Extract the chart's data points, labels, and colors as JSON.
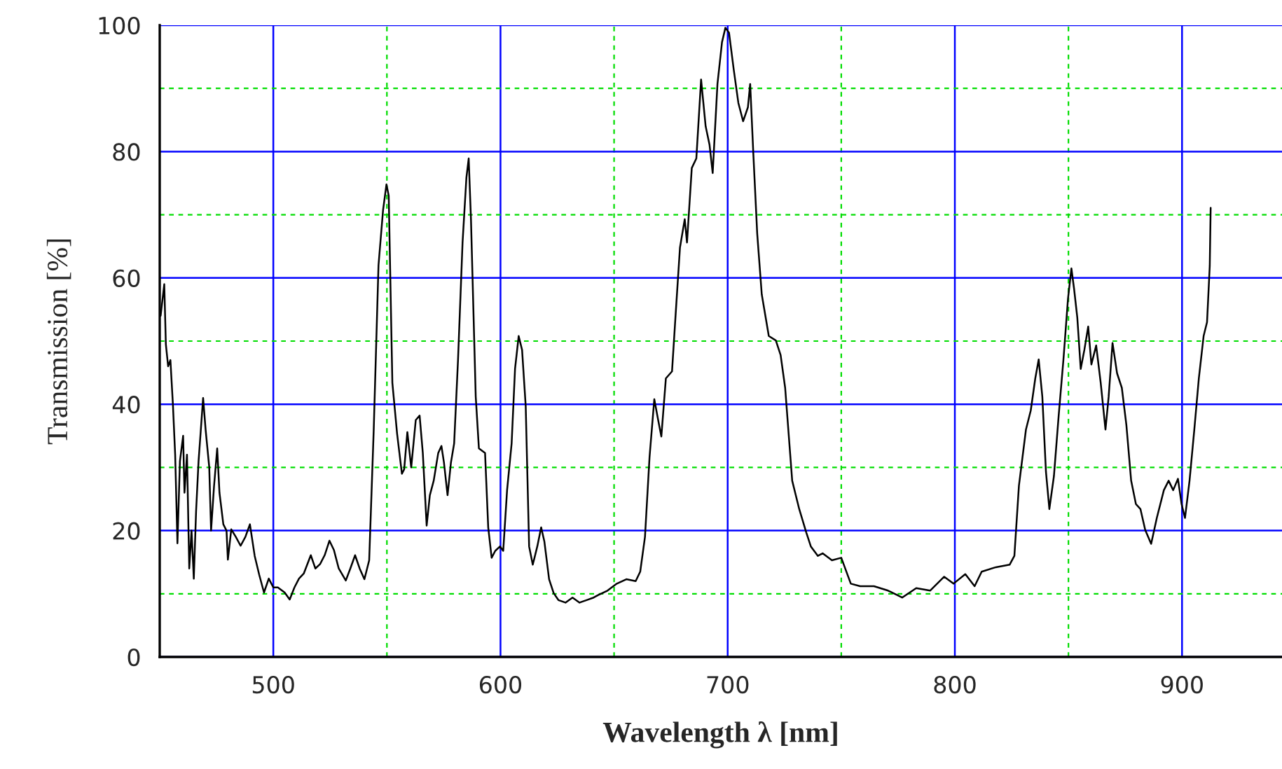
{
  "chart_data": {
    "type": "line",
    "xlabel": "Wavelength λ [nm]",
    "ylabel": "Transmission [%]",
    "xlim": [
      450,
      944
    ],
    "ylim": [
      0,
      100
    ],
    "xticks": [
      500,
      {
        "value": 550,
        "label": null
      },
      600,
      {
        "value": 650,
        "label": null
      },
      700,
      {
        "value": 750,
        "label": null
      },
      800,
      {
        "value": 850,
        "label": null
      },
      900
    ],
    "yticks": [
      0,
      {
        "value": 10,
        "label": null
      },
      20,
      {
        "value": 30,
        "label": null
      },
      40,
      {
        "value": 50,
        "label": null
      },
      60,
      {
        "value": 70,
        "label": null
      },
      80,
      {
        "value": 90,
        "label": null
      },
      100
    ],
    "grid": true,
    "legend": false,
    "marker": "none",
    "line_style": "solid",
    "series": [
      {
        "color": "#000000",
        "x": [
          450.4,
          452,
          452.7,
          453.7,
          454.7,
          455.8,
          456.8,
          457.8,
          458.9,
          460.3,
          460.9,
          462,
          463,
          464,
          465,
          466,
          467.1,
          468.1,
          469.1,
          470.2,
          471.8,
          472.6,
          473.9,
          475.3,
          476.3,
          478,
          479.4,
          480,
          481.5,
          483.5,
          485.6,
          487.7,
          489.7,
          491.8,
          493.8,
          495.9,
          498,
          500,
          502,
          505,
          507.2,
          509.3,
          511.3,
          513.4,
          516.5,
          518.5,
          520.6,
          522.6,
          524.7,
          526.7,
          528.8,
          531.9,
          533.9,
          536,
          538,
          540.1,
          542.2,
          544.2,
          546.3,
          548.3,
          549.8,
          550.8,
          552.4,
          554.5,
          556.6,
          557.6,
          559,
          560.7,
          562.7,
          564.4,
          565.8,
          567.5,
          568.9,
          570.6,
          572.6,
          574,
          575.1,
          576.7,
          578.2,
          579.6,
          581.3,
          583.3,
          585,
          586,
          587,
          589.1,
          590.5,
          593.2,
          594.6,
          596.1,
          597.7,
          599.8,
          601.2,
          602.9,
          604.9,
          606.4,
          608,
          609.5,
          611.1,
          612.6,
          614.2,
          616.2,
          617.9,
          619.3,
          621.4,
          623.4,
          625.5,
          628.6,
          631.7,
          634.8,
          637.9,
          641,
          643,
          647.1,
          651.2,
          655.4,
          659.5,
          661.5,
          663.6,
          665.6,
          667.7,
          669.4,
          670.8,
          672.8,
          675.5,
          677,
          679,
          681.1,
          682.1,
          684.2,
          686.2,
          688.3,
          690.3,
          692,
          693.4,
          695.5,
          697.5,
          699,
          700.6,
          702.7,
          704.7,
          706.8,
          708.9,
          709.9,
          711.3,
          713,
          715,
          718.1,
          721.2,
          723.3,
          725.3,
          728.4,
          731.5,
          734.6,
          736.6,
          739.7,
          741.8,
          745.9,
          750,
          754.2,
          758.3,
          764.4,
          770.6,
          776.8,
          783,
          789.1,
          795.3,
          799.4,
          804.6,
          808.7,
          811.8,
          818,
          824.1,
          826.2,
          828.2,
          831.3,
          833.4,
          835.4,
          836.9,
          838.5,
          840.1,
          841.6,
          843.6,
          845.7,
          847.8,
          849.8,
          851.3,
          852.5,
          853.9,
          855.4,
          857,
          858.7,
          860.1,
          862.2,
          864.2,
          866.3,
          867.7,
          869.4,
          871.4,
          873.5,
          875.5,
          877.6,
          879.7,
          881.7,
          883.8,
          886.4,
          888.9,
          892,
          894.1,
          896.1,
          898.2,
          899.8,
          901.3,
          903.3,
          905.4,
          907.4,
          909.5,
          911,
          912.2,
          912.6
        ],
        "values": [
          54,
          59,
          49.5,
          46,
          47,
          40,
          32,
          18,
          31,
          35,
          26,
          32,
          14,
          20,
          12.4,
          23,
          31,
          36,
          41,
          36,
          30,
          20,
          27,
          33,
          26,
          21,
          20,
          15.4,
          20.2,
          19,
          17.6,
          19,
          21,
          16,
          13,
          10.2,
          12.4,
          11,
          11,
          10.2,
          9.1,
          11,
          12.4,
          13.2,
          16.1,
          14,
          14.7,
          16.1,
          18.4,
          16.9,
          14,
          12.1,
          14,
          16.1,
          14,
          12.3,
          15.3,
          36,
          62,
          70.7,
          74.8,
          73,
          43.4,
          35.3,
          29,
          29.7,
          35.6,
          30,
          37.5,
          38.2,
          32.3,
          20.8,
          25.6,
          27.9,
          32.3,
          33.4,
          30.8,
          25.6,
          30.8,
          33.8,
          47,
          65.6,
          75.9,
          78.9,
          69.3,
          41.2,
          33,
          32.3,
          20.5,
          15.7,
          16.8,
          17.5,
          16.8,
          26.4,
          33.8,
          45.6,
          50.8,
          48.6,
          39.7,
          17.5,
          14.6,
          17.5,
          20.5,
          18.3,
          12.3,
          10.1,
          9,
          8.6,
          9.4,
          8.6,
          9,
          9.4,
          9.8,
          10.5,
          11.6,
          12.3,
          12,
          13.5,
          19,
          31.6,
          40.8,
          37.5,
          34.9,
          44.1,
          45.2,
          53.7,
          64.8,
          69.3,
          65.6,
          77.4,
          78.9,
          91.4,
          84,
          81.1,
          76.6,
          90.7,
          97.3,
          99.6,
          98.8,
          92.9,
          87.7,
          84.8,
          87,
          90.7,
          79.6,
          67,
          57.4,
          50.8,
          50.1,
          47.8,
          42.6,
          27.9,
          23.4,
          19.7,
          17.5,
          16,
          16.4,
          15.3,
          15.7,
          11.6,
          11.2,
          11.2,
          10.5,
          9.4,
          10.9,
          10.5,
          12.7,
          11.6,
          13.1,
          11.2,
          13.5,
          14.2,
          14.6,
          16,
          27.1,
          36,
          39,
          44.1,
          47.1,
          41.2,
          29.3,
          23.4,
          28.6,
          38.2,
          47.1,
          56.7,
          61.5,
          58.2,
          53.7,
          45.6,
          48.6,
          52.3,
          46.3,
          49.3,
          43.4,
          36,
          41.2,
          49.7,
          44.9,
          42.6,
          36.7,
          27.9,
          24.2,
          23.4,
          20.1,
          17.9,
          22,
          26.4,
          27.9,
          26.4,
          28.2,
          24.2,
          22,
          27.9,
          36,
          44.1,
          50.8,
          53,
          61.9,
          71.1
        ]
      }
    ]
  }
}
